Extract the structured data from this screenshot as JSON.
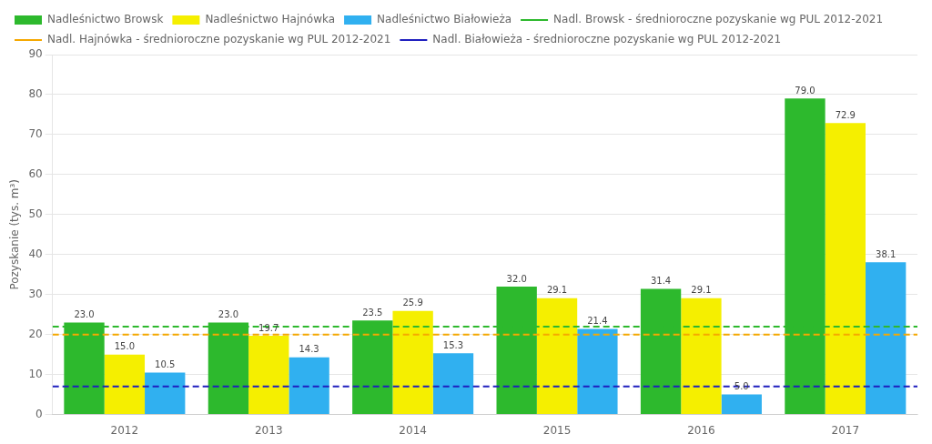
{
  "chart_data": {
    "type": "bar",
    "categories": [
      "2012",
      "2013",
      "2014",
      "2015",
      "2016",
      "2017"
    ],
    "series": [
      {
        "name": "Nadleśnictwo Browsk",
        "color": "#2db92d",
        "values": [
          23.0,
          23.0,
          23.5,
          32.0,
          31.4,
          79.0
        ],
        "value_labels": [
          "23.0",
          "23.0",
          "23.5",
          "32.0",
          "31.4",
          "79.0"
        ]
      },
      {
        "name": "Nadleśnictwo Hajnówka",
        "color": "#f5ef00",
        "values": [
          15.0,
          19.7,
          25.9,
          29.1,
          29.1,
          72.9
        ],
        "value_labels": [
          "15.0",
          "19.7",
          "25.9",
          "29.1",
          "29.1",
          "72.9"
        ]
      },
      {
        "name": "Nadleśnictwo Białowieża",
        "color": "#30b0f0",
        "values": [
          10.5,
          14.3,
          15.3,
          21.4,
          5.0,
          38.1
        ],
        "value_labels": [
          "10.5",
          "14.3",
          "15.3",
          "21.4",
          "5.0",
          "38.1"
        ]
      },
      {
        "name": "Nadl. Browsk - średnioroczne pozyskanie wg PUL 2012-2021",
        "type": "hline",
        "line_style": "dashed",
        "color": "#2db92d",
        "value": 22.0
      },
      {
        "name": "Nadl. Hajnówka - średnioroczne pozyskanie wg PUL 2012-2021",
        "type": "hline",
        "line_style": "dashed",
        "color": "#f5a800",
        "value": 20.0
      },
      {
        "name": "Nadl. Białowieża - średnioroczne pozyskanie wg PUL 2012-2021",
        "type": "hline",
        "line_style": "dashed",
        "color": "#1f1fbf",
        "value": 7.0
      }
    ],
    "ylabel": "Pozyskanie (tys. m³)",
    "ylim": [
      0,
      90
    ],
    "yticks": [
      0,
      10,
      20,
      30,
      40,
      50,
      60,
      70,
      80,
      90
    ],
    "grid": true,
    "legend": "upper left",
    "data_labels": true
  }
}
